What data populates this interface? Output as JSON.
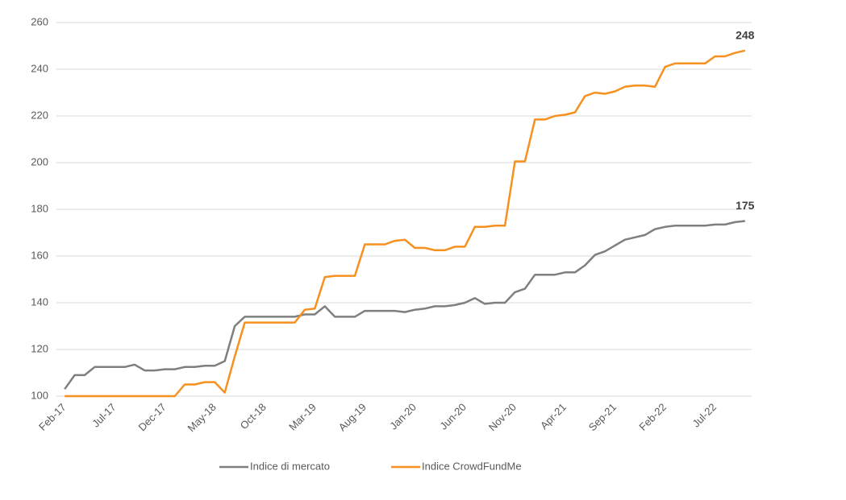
{
  "chart_data": {
    "type": "line",
    "categories": [
      "Feb-17",
      null,
      null,
      null,
      null,
      "Jul-17",
      null,
      null,
      null,
      null,
      "Dec-17",
      null,
      null,
      null,
      null,
      "May-18",
      null,
      null,
      null,
      null,
      "Oct-18",
      null,
      null,
      null,
      null,
      "Mar-19",
      null,
      null,
      null,
      null,
      "Aug-19",
      null,
      null,
      null,
      null,
      "Jan-20",
      null,
      null,
      null,
      null,
      "Jun-20",
      null,
      null,
      null,
      null,
      "Nov-20",
      null,
      null,
      null,
      null,
      "Apr-21",
      null,
      null,
      null,
      null,
      "Sep-21",
      null,
      null,
      null,
      null,
      "Feb-22",
      null,
      null,
      null,
      null,
      "Jul-22",
      null,
      null,
      null
    ],
    "series": [
      {
        "name": "Indice di mercato",
        "color": "#7f7f7f",
        "end_label": 175,
        "values": [
          103,
          109,
          109,
          112.5,
          112.5,
          112.5,
          112.5,
          113.5,
          111,
          111,
          111.5,
          111.5,
          112.5,
          112.5,
          113,
          113,
          115,
          130,
          134,
          134,
          134,
          134,
          134,
          134,
          135,
          135,
          138.5,
          134,
          134,
          134,
          136.5,
          136.5,
          136.5,
          136.5,
          136,
          137,
          137.5,
          138.5,
          138.5,
          139,
          140,
          142,
          139.5,
          140,
          140,
          144.5,
          146,
          152,
          152,
          152,
          153,
          153,
          156,
          160.5,
          162,
          164.5,
          167,
          168,
          169,
          171.5,
          172.5,
          173,
          173,
          173,
          173,
          173.5,
          173.5,
          174.5,
          175
        ]
      },
      {
        "name": "Indice CrowdFundMe",
        "color": "#f7901e",
        "end_label": 248,
        "values": [
          100,
          100,
          100,
          100,
          100,
          100,
          100,
          100,
          100,
          100,
          100,
          100,
          105,
          105,
          106,
          106,
          101.5,
          117,
          131.5,
          131.5,
          131.5,
          131.5,
          131.5,
          131.5,
          137,
          137.5,
          151,
          151.5,
          151.5,
          151.5,
          165,
          165,
          165,
          166.5,
          167,
          163.5,
          163.5,
          162.5,
          162.5,
          164,
          164,
          172.5,
          172.5,
          173,
          173,
          200.5,
          200.5,
          218.5,
          218.5,
          220,
          220.5,
          221.5,
          228.5,
          230,
          229.5,
          230.5,
          232.5,
          233,
          233,
          232.5,
          241,
          242.5,
          242.5,
          242.5,
          242.5,
          245.5,
          245.5,
          247,
          248
        ]
      }
    ],
    "ylim": [
      100,
      260
    ],
    "yticks": [
      100,
      120,
      140,
      160,
      180,
      200,
      220,
      240,
      260
    ],
    "grid": true
  }
}
